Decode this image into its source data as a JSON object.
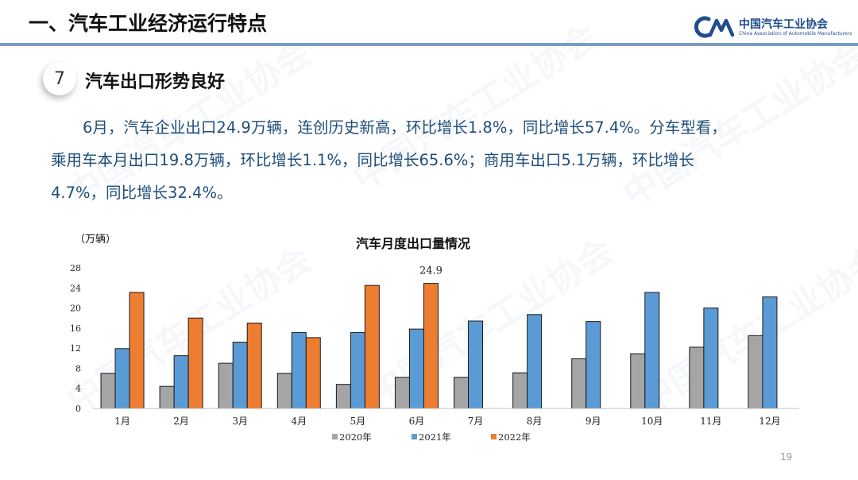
{
  "header": {
    "title": "一、汽车工业经济运行特点",
    "logo_cn": "中国汽车工业协会",
    "logo_en": "China Association of Automobile Manufacturers",
    "accent_color": "#7a9cbf"
  },
  "section": {
    "number": "7",
    "title": "汽车出口形势良好"
  },
  "paragraph": {
    "line1": "6月，汽车企业出口24.9万辆，连创历史新高，环比增长1.8%，同比增长57.4%。分车型看，",
    "line2": "乘用车本月出口19.8万辆，环比增长1.1%，同比增长65.6%；商用车出口5.1万辆，环比增长",
    "line3": "4.7%，同比增长32.4%。"
  },
  "watermark": "中国汽车工业协会",
  "page_number": "19",
  "chart_data": {
    "type": "bar",
    "title": "汽车月度出口量情况",
    "ylabel": "（万辆）",
    "xlabel": "",
    "categories": [
      "1月",
      "2月",
      "3月",
      "4月",
      "5月",
      "6月",
      "7月",
      "8月",
      "9月",
      "10月",
      "11月",
      "12月"
    ],
    "ylim": [
      0,
      28
    ],
    "yticks": [
      "0",
      "4",
      "8",
      "12",
      "16",
      "20",
      "24",
      "28"
    ],
    "series": [
      {
        "name": "2020年",
        "color": "#a5a5a5",
        "values": [
          7.0,
          4.4,
          9.0,
          7.0,
          4.8,
          6.2,
          6.2,
          7.1,
          9.9,
          10.9,
          12.2,
          14.5
        ]
      },
      {
        "name": "2021年",
        "color": "#5b9bd5",
        "values": [
          11.9,
          10.5,
          13.2,
          15.1,
          15.1,
          15.8,
          17.4,
          18.7,
          17.3,
          23.1,
          20.0,
          22.2
        ]
      },
      {
        "name": "2022年",
        "color": "#ed7d31",
        "values": [
          23.1,
          18.0,
          17.0,
          14.1,
          24.5,
          24.9,
          null,
          null,
          null,
          null,
          null,
          null
        ]
      }
    ],
    "annotations": [
      {
        "category": "6月",
        "series": "2022年",
        "text": "24.9"
      }
    ],
    "grid": false,
    "legend_position": "bottom"
  }
}
